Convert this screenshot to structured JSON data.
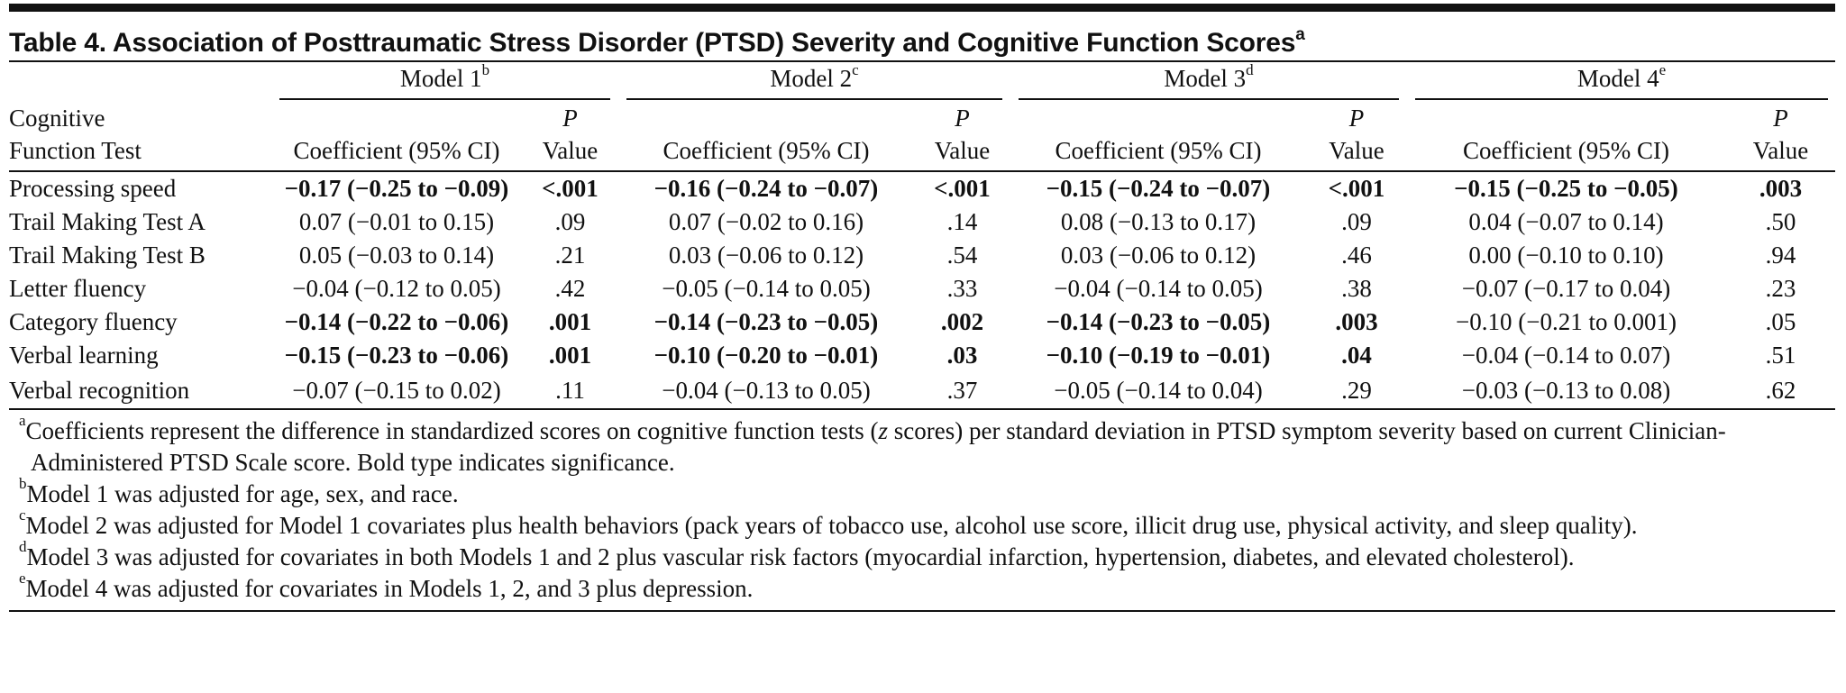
{
  "title": "Table 4. Association of Posttraumatic Stress Disorder (PTSD) Severity and Cognitive Function Scores",
  "title_sup": "a",
  "models": [
    {
      "label": "Model 1",
      "sup": "b"
    },
    {
      "label": "Model 2",
      "sup": "c"
    },
    {
      "label": "Model 3",
      "sup": "d"
    },
    {
      "label": "Model 4",
      "sup": "e"
    }
  ],
  "headers": {
    "test_line1": "Cognitive",
    "test_line2": "Function Test",
    "coef": "Coefficient (95% CI)",
    "p_line1": "P",
    "p_line2": "Value"
  },
  "rows": [
    {
      "name": "Processing speed",
      "cells": [
        {
          "coef": "−0.17 (−0.25 to −0.09)",
          "p": "<.001",
          "bold": true
        },
        {
          "coef": "−0.16 (−0.24 to −0.07)",
          "p": "<.001",
          "bold": true
        },
        {
          "coef": "−0.15 (−0.24 to −0.07)",
          "p": "<.001",
          "bold": true
        },
        {
          "coef": "−0.15 (−0.25 to −0.05)",
          "p": ".003",
          "bold": true
        }
      ]
    },
    {
      "name": "Trail Making Test A",
      "cells": [
        {
          "coef": "0.07 (−0.01 to 0.15)",
          "p": ".09",
          "bold": false
        },
        {
          "coef": "0.07 (−0.02 to 0.16)",
          "p": ".14",
          "bold": false
        },
        {
          "coef": "0.08 (−0.13 to 0.17)",
          "p": ".09",
          "bold": false
        },
        {
          "coef": "0.04 (−0.07 to 0.14)",
          "p": ".50",
          "bold": false
        }
      ]
    },
    {
      "name": "Trail Making Test B",
      "cells": [
        {
          "coef": "0.05 (−0.03 to 0.14)",
          "p": ".21",
          "bold": false
        },
        {
          "coef": "0.03 (−0.06 to 0.12)",
          "p": ".54",
          "bold": false
        },
        {
          "coef": "0.03 (−0.06 to 0.12)",
          "p": ".46",
          "bold": false
        },
        {
          "coef": "0.00 (−0.10 to 0.10)",
          "p": ".94",
          "bold": false
        }
      ]
    },
    {
      "name": "Letter fluency",
      "cells": [
        {
          "coef": "−0.04 (−0.12 to 0.05)",
          "p": ".42",
          "bold": false
        },
        {
          "coef": "−0.05 (−0.14 to 0.05)",
          "p": ".33",
          "bold": false
        },
        {
          "coef": "−0.04 (−0.14 to 0.05)",
          "p": ".38",
          "bold": false
        },
        {
          "coef": "−0.07 (−0.17 to 0.04)",
          "p": ".23",
          "bold": false
        }
      ]
    },
    {
      "name": "Category fluency",
      "cells": [
        {
          "coef": "−0.14 (−0.22 to −0.06)",
          "p": ".001",
          "bold": true
        },
        {
          "coef": "−0.14 (−0.23 to −0.05)",
          "p": ".002",
          "bold": true
        },
        {
          "coef": "−0.14 (−0.23 to −0.05)",
          "p": ".003",
          "bold": true
        },
        {
          "coef": "−0.10 (−0.21 to 0.001)",
          "p": ".05",
          "bold": false
        }
      ]
    },
    {
      "name": "Verbal learning",
      "cells": [
        {
          "coef": "−0.15 (−0.23 to −0.06)",
          "p": ".001",
          "bold": true
        },
        {
          "coef": "−0.10 (−0.20 to −0.01)",
          "p": ".03",
          "bold": true
        },
        {
          "coef": "−0.10 (−0.19 to −0.01)",
          "p": ".04",
          "bold": true
        },
        {
          "coef": "−0.04 (−0.14 to 0.07)",
          "p": ".51",
          "bold": false
        }
      ]
    },
    {
      "name": "Verbal recognition",
      "cells": [
        {
          "coef": "−0.07 (−0.15 to 0.02)",
          "p": ".11",
          "bold": false
        },
        {
          "coef": "−0.04 (−0.13 to 0.05)",
          "p": ".37",
          "bold": false
        },
        {
          "coef": "−0.05 (−0.14 to 0.04)",
          "p": ".29",
          "bold": false
        },
        {
          "coef": "−0.03 (−0.13 to 0.08)",
          "p": ".62",
          "bold": false
        }
      ]
    }
  ],
  "footnotes": {
    "a": {
      "sup": "a",
      "pre": "Coefficients represent the difference in standardized scores on cognitive function tests (",
      "italic": "z",
      "post": " scores) per standard deviation in PTSD symptom severity based on current Clinician-Administered PTSD Scale score. Bold type indicates significance."
    },
    "b": {
      "sup": "b",
      "text": "Model 1 was adjusted for age, sex, and race."
    },
    "c": {
      "sup": "c",
      "text": "Model 2 was adjusted for Model 1 covariates plus health behaviors (pack years of tobacco use, alcohol use score, illicit drug use, physical activity, and sleep quality)."
    },
    "d": {
      "sup": "d",
      "text": "Model 3 was adjusted for covariates in both Models 1 and 2 plus vascular risk factors (myocardial infarction, hypertension, diabetes, and elevated cholesterol)."
    },
    "e": {
      "sup": "e",
      "text": "Model 4 was adjusted for covariates in Models 1, 2, and 3 plus depression."
    }
  }
}
